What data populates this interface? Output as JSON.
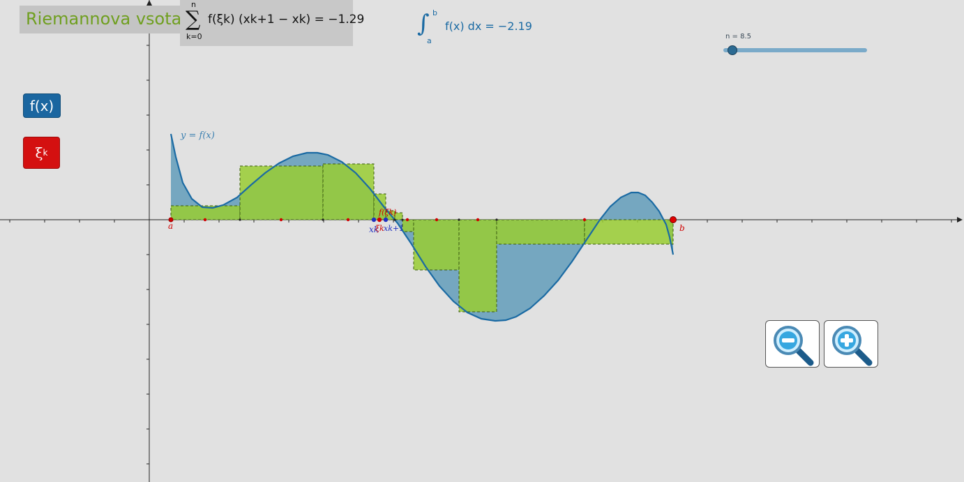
{
  "header": {
    "title": "Riemannova vsota",
    "sum_upper": "n",
    "sum_lower": "k=0",
    "sum_expr": "f(ξk) (xk+1 − xk) = −1.29",
    "int_upper": "b",
    "int_lower": "a",
    "int_expr": "f(x) dx = −2.19"
  },
  "slider": {
    "label": "n = 8.5",
    "value": 8.5,
    "min": 8,
    "max": 40
  },
  "buttons": {
    "f_label": "f(x)",
    "xi_label": "ξ",
    "xi_sub": "k"
  },
  "graph": {
    "curve_label": "y = f(x)",
    "a_label": "a",
    "b_label": "b",
    "xk_label": "xk",
    "xk1_label": "xk+1",
    "xik_label": "ξk",
    "fxik_label": "f(ξk)"
  },
  "colors": {
    "background": "#e1e1e1",
    "curve": "#1a6aa3",
    "area_fill": "#6fa3be",
    "rect_fill": "#99cc33",
    "point_red": "#d00000",
    "point_blue": "#2030c0",
    "title_green": "#6f9f1f"
  },
  "icons": {
    "zoom_out": "zoom-out-icon",
    "zoom_in": "zoom-in-icon"
  }
}
